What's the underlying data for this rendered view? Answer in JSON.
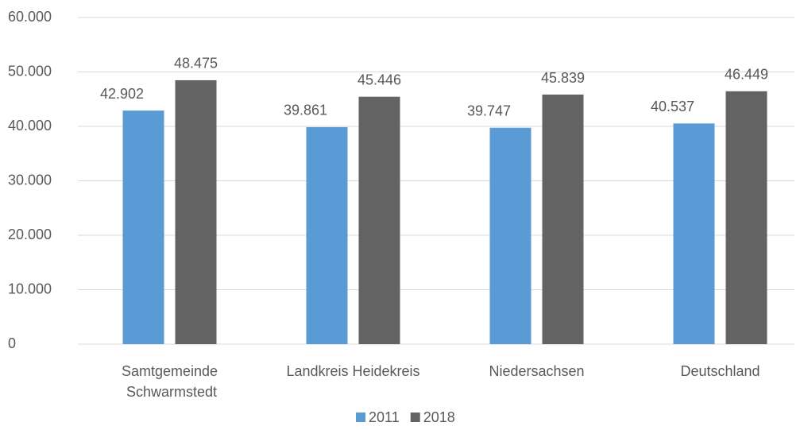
{
  "chart_data": {
    "type": "bar",
    "categories": [
      "Samtgemeinde Schwarmstedt",
      "Landkreis Heidekreis",
      "Niedersachsen",
      "Deutschland"
    ],
    "series": [
      {
        "name": "2011",
        "color": "#5b9bd5",
        "values": [
          42902,
          39861,
          39747,
          40537
        ],
        "value_labels": [
          "42.902",
          "39.861",
          "39.747",
          "40.537"
        ]
      },
      {
        "name": "2018",
        "color": "#636363",
        "values": [
          48475,
          45446,
          45839,
          46449
        ],
        "value_labels": [
          "48.475",
          "45.446",
          "45.839",
          "46.449"
        ]
      }
    ],
    "ylim": [
      0,
      60000
    ],
    "yticks": [
      0,
      {
        "value": 10000,
        "label": "10.000"
      },
      {
        "value": 20000,
        "label": "20.000"
      },
      {
        "value": 30000,
        "label": "30.000"
      },
      {
        "value": 40000,
        "label": "40.000"
      },
      {
        "value": 50000,
        "label": "50.000"
      },
      {
        "value": 60000,
        "label": "60.000"
      }
    ],
    "grid": true,
    "legend": "bottom"
  }
}
